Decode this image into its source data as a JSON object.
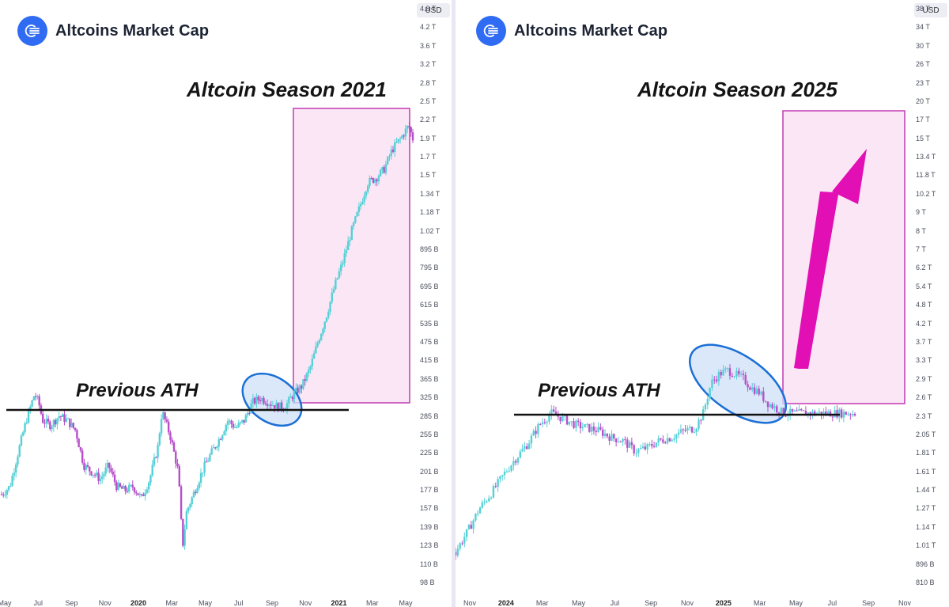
{
  "panels": [
    {
      "brand": "Altcoins Market Cap",
      "currency": "USD",
      "season_label": "Altcoin Season 2021",
      "ath_label": "Previous ATH",
      "y_ticks": [
        "4.8 T",
        "4.2 T",
        "3.6 T",
        "3.2 T",
        "2.8 T",
        "2.5 T",
        "2.2 T",
        "1.9 T",
        "1.7 T",
        "1.5 T",
        "1.34 T",
        "1.18 T",
        "1.02 T",
        "895 B",
        "795 B",
        "695 B",
        "615 B",
        "535 B",
        "475 B",
        "415 B",
        "365 B",
        "325 B",
        "285 B",
        "255 B",
        "225 B",
        "201 B",
        "177 B",
        "157 B",
        "139 B",
        "123 B",
        "110 B",
        "98 B"
      ],
      "x_ticks": [
        {
          "label": "May",
          "year": false
        },
        {
          "label": "Jul",
          "year": false
        },
        {
          "label": "Sep",
          "year": false
        },
        {
          "label": "Nov",
          "year": false
        },
        {
          "label": "2020",
          "year": true
        },
        {
          "label": "Mar",
          "year": false
        },
        {
          "label": "May",
          "year": false
        },
        {
          "label": "Jul",
          "year": false
        },
        {
          "label": "Sep",
          "year": false
        },
        {
          "label": "Nov",
          "year": false
        },
        {
          "label": "2021",
          "year": true
        },
        {
          "label": "Mar",
          "year": false
        },
        {
          "label": "May",
          "year": false
        }
      ]
    },
    {
      "brand": "Altcoins Market Cap",
      "currency": "USD",
      "season_label": "Altcoin Season 2025",
      "ath_label": "Previous ATH",
      "y_ticks": [
        "38 T",
        "34 T",
        "30 T",
        "26 T",
        "23 T",
        "20 T",
        "17 T",
        "15 T",
        "13.4 T",
        "11.8 T",
        "10.2 T",
        "9 T",
        "8 T",
        "7 T",
        "6.2 T",
        "5.4 T",
        "4.8 T",
        "4.2 T",
        "3.7 T",
        "3.3 T",
        "2.9 T",
        "2.6 T",
        "2.3 T",
        "2.05 T",
        "1.81 T",
        "1.61 T",
        "1.44 T",
        "1.27 T",
        "1.14 T",
        "1.01 T",
        "896 B",
        "810 B"
      ],
      "x_ticks": [
        {
          "label": "Nov",
          "year": false
        },
        {
          "label": "2024",
          "year": true
        },
        {
          "label": "Mar",
          "year": false
        },
        {
          "label": "May",
          "year": false
        },
        {
          "label": "Jul",
          "year": false
        },
        {
          "label": "Sep",
          "year": false
        },
        {
          "label": "Nov",
          "year": false
        },
        {
          "label": "2025",
          "year": true
        },
        {
          "label": "Mar",
          "year": false
        },
        {
          "label": "May",
          "year": false
        },
        {
          "label": "Jul",
          "year": false
        },
        {
          "label": "Sep",
          "year": false
        },
        {
          "label": "Nov",
          "year": false
        }
      ]
    }
  ],
  "colors": {
    "up": "#55d0d6",
    "down": "#b650c8",
    "highlight_fill": "#fbe6f6",
    "highlight_stroke": "#c23ab4",
    "ellipse_fill": "#cfe0f7",
    "ellipse_stroke": "#1b6fd6",
    "arrow": "#e20fb4",
    "ath_line": "#111111",
    "brand": "#2f6cf3"
  },
  "chart_data": [
    {
      "type": "candlestick",
      "series": [
        {
          "values": [
            [
              0.0,
              180
            ],
            [
              0.02,
              190
            ],
            [
              0.04,
              240
            ],
            [
              0.06,
              300
            ],
            [
              0.08,
              360
            ],
            [
              0.09,
              340
            ],
            [
              0.1,
              300
            ],
            [
              0.12,
              290
            ],
            [
              0.14,
              310
            ],
            [
              0.16,
              300
            ],
            [
              0.18,
              280
            ],
            [
              0.2,
              220
            ],
            [
              0.22,
              210
            ],
            [
              0.24,
              200
            ],
            [
              0.26,
              220
            ],
            [
              0.28,
              190
            ],
            [
              0.3,
              185
            ],
            [
              0.32,
              190
            ],
            [
              0.34,
              175
            ],
            [
              0.36,
              200
            ],
            [
              0.38,
              250
            ],
            [
              0.39,
              320
            ],
            [
              0.41,
              270
            ],
            [
              0.43,
              210
            ],
            [
              0.44,
              125
            ],
            [
              0.45,
              160
            ],
            [
              0.47,
              185
            ],
            [
              0.49,
              215
            ],
            [
              0.51,
              240
            ],
            [
              0.53,
              265
            ],
            [
              0.55,
              300
            ],
            [
              0.57,
              285
            ],
            [
              0.59,
              300
            ],
            [
              0.61,
              340
            ],
            [
              0.63,
              350
            ],
            [
              0.65,
              340
            ],
            [
              0.67,
              330
            ],
            [
              0.69,
              330
            ],
            [
              0.71,
              360
            ],
            [
              0.73,
              380
            ],
            [
              0.75,
              430
            ],
            [
              0.77,
              520
            ],
            [
              0.79,
              620
            ],
            [
              0.81,
              760
            ],
            [
              0.83,
              900
            ],
            [
              0.85,
              1100
            ],
            [
              0.87,
              1300
            ],
            [
              0.89,
              1550
            ],
            [
              0.91,
              1600
            ],
            [
              0.93,
              1700
            ],
            [
              0.95,
              1950
            ],
            [
              0.97,
              2100
            ],
            [
              0.99,
              2300
            ],
            [
              1.0,
              2100
            ]
          ]
        }
      ]
    },
    {
      "type": "candlestick",
      "series": [
        {
          "values": [
            [
              0.0,
              1.0
            ],
            [
              0.03,
              1.15
            ],
            [
              0.06,
              1.35
            ],
            [
              0.09,
              1.5
            ],
            [
              0.12,
              1.7
            ],
            [
              0.15,
              1.9
            ],
            [
              0.18,
              2.1
            ],
            [
              0.21,
              2.4
            ],
            [
              0.24,
              2.6
            ],
            [
              0.27,
              2.5
            ],
            [
              0.3,
              2.4
            ],
            [
              0.33,
              2.35
            ],
            [
              0.36,
              2.3
            ],
            [
              0.39,
              2.2
            ],
            [
              0.42,
              2.15
            ],
            [
              0.45,
              2.0
            ],
            [
              0.48,
              2.05
            ],
            [
              0.51,
              2.15
            ],
            [
              0.54,
              2.2
            ],
            [
              0.57,
              2.3
            ],
            [
              0.6,
              2.35
            ],
            [
              0.62,
              2.6
            ],
            [
              0.64,
              3.2
            ],
            [
              0.66,
              3.4
            ],
            [
              0.68,
              3.5
            ],
            [
              0.7,
              3.4
            ],
            [
              0.72,
              3.3
            ],
            [
              0.74,
              3.1
            ],
            [
              0.76,
              3.0
            ],
            [
              0.78,
              2.8
            ],
            [
              0.8,
              2.7
            ],
            [
              0.82,
              2.6
            ]
          ]
        }
      ],
      "annotation": "Altcoin Season 2025"
    }
  ]
}
